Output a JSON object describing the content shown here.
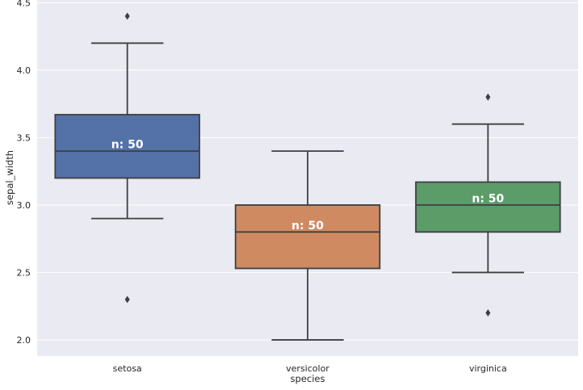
{
  "chart_data": {
    "type": "box",
    "xlabel": "species",
    "ylabel": "sepal_width",
    "ylim": [
      1.88,
      4.52
    ],
    "yticks": [
      2.0,
      2.5,
      3.0,
      3.5,
      4.0,
      4.5
    ],
    "ytick_labels": [
      "2.0",
      "2.5",
      "3.0",
      "3.5",
      "4.0",
      "4.5"
    ],
    "grid": true,
    "categories": [
      "setosa",
      "versicolor",
      "virginica"
    ],
    "boxes": [
      {
        "category": "setosa",
        "q1": 3.2,
        "median": 3.4,
        "q3": 3.67,
        "whisker_low": 2.9,
        "whisker_high": 4.2,
        "outliers": [
          4.4,
          2.3
        ],
        "color": "#5471a8",
        "annotation": "n: 50",
        "annotation_y": 3.45
      },
      {
        "category": "versicolor",
        "q1": 2.53,
        "median": 2.8,
        "q3": 3.0,
        "whisker_low": 2.0,
        "whisker_high": 3.4,
        "outliers": [],
        "color": "#cf8a61",
        "annotation": "n: 50",
        "annotation_y": 2.85
      },
      {
        "category": "virginica",
        "q1": 2.8,
        "median": 3.0,
        "q3": 3.17,
        "whisker_low": 2.5,
        "whisker_high": 3.6,
        "outliers": [
          3.8,
          2.2
        ],
        "color": "#5b9c69",
        "annotation": "n: 50",
        "annotation_y": 3.05
      }
    ]
  },
  "colors": {
    "plot_background": "#eaeaf2",
    "grid": "#ffffff",
    "box_edge": "#3f3f3f"
  }
}
